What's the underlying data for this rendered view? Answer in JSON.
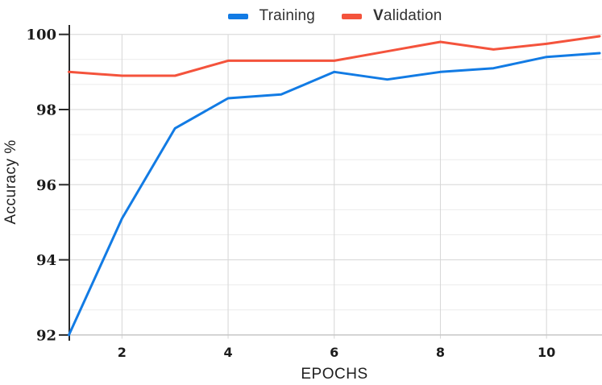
{
  "figure": {
    "background": "#ffffff"
  },
  "legend": {
    "position": "top-center",
    "items": [
      {
        "label": "Training",
        "color": "#127be4"
      },
      {
        "label": "Validation",
        "color": "#f4533c"
      }
    ]
  },
  "chart_data": {
    "type": "line",
    "title": "",
    "xlabel": "EPOCHS",
    "ylabel": "Accuracy %",
    "x": [
      1,
      2,
      3,
      4,
      5,
      6,
      7,
      8,
      9,
      10,
      11
    ],
    "series": [
      {
        "name": "Training",
        "color": "#127be4",
        "values": [
          92.0,
          95.1,
          97.5,
          98.3,
          98.4,
          99.0,
          98.8,
          99.0,
          99.1,
          99.4,
          99.5
        ]
      },
      {
        "name": "Validation",
        "color": "#f4533c",
        "values": [
          99.0,
          98.9,
          98.9,
          99.3,
          99.3,
          99.3,
          99.55,
          99.8,
          99.6,
          99.75,
          99.95
        ]
      }
    ],
    "xlim": [
      1,
      11
    ],
    "ylim": [
      92,
      100
    ],
    "xticks": [
      2,
      4,
      6,
      8,
      10
    ],
    "yticks": [
      100,
      98,
      96,
      94,
      92
    ],
    "grid": {
      "major": true,
      "minor_horizontal_per_major": 3,
      "legend_position": "top-center"
    },
    "style": {
      "major_grid_color": "#d6d6d6",
      "minor_grid_color": "#ececec",
      "baseline_color": "#c6c6c6",
      "spine_color": "#2a2a2a",
      "line_width": 3
    }
  }
}
